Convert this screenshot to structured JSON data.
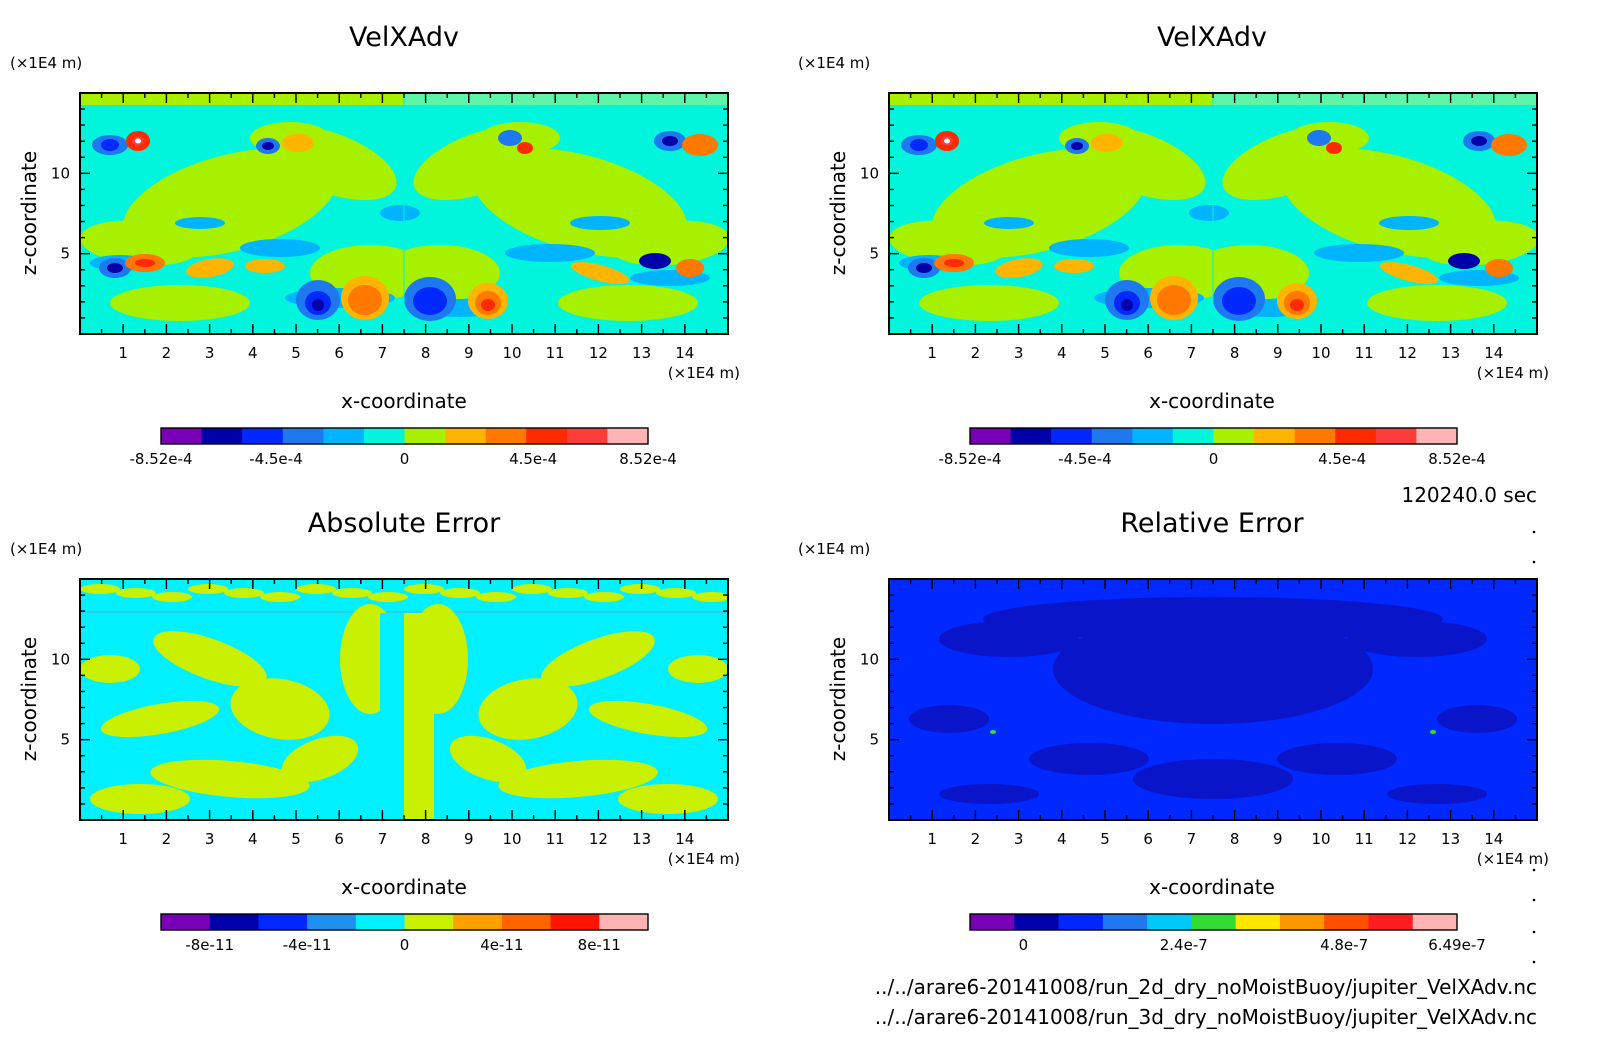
{
  "time_label": "120240.0 sec",
  "file_paths": [
    "../../arare6-20141008/run_2d_dry_noMoistBuoy/jupiter_VelXAdv.nc",
    "../../arare6-20141008/run_3d_dry_noMoistBuoy/jupiter_VelXAdv.nc"
  ],
  "chart_data": [
    {
      "type": "heatmap",
      "title": "VelXAdv",
      "xlabel": "x-coordinate",
      "ylabel": "z-coordinate",
      "x_unit": "(×1E4 m)",
      "y_unit": "(×1E4 m)",
      "x_ticks": [
        1,
        2,
        3,
        4,
        5,
        6,
        7,
        8,
        9,
        10,
        11,
        12,
        13,
        14
      ],
      "y_ticks": [
        5,
        10
      ],
      "xlim": [
        0,
        15
      ],
      "ylim": [
        0,
        15
      ],
      "colorbar": {
        "min": -0.000852,
        "max": 0.000852,
        "colors": [
          "#7a00b8",
          "#0000a8",
          "#0028ff",
          "#1e78f0",
          "#00b4ff",
          "#00f5dc",
          "#a6f000",
          "#ffb400",
          "#ff7800",
          "#ff2a00",
          "#ff3c3c",
          "#ffb4b4"
        ],
        "tick_labels": [
          "-8.52e-4",
          "-4.5e-4",
          "0",
          "4.5e-4",
          "8.52e-4"
        ],
        "tick_values": [
          -0.000852,
          -0.00045,
          0,
          0.00045,
          0.000852
        ]
      },
      "field": "velx"
    },
    {
      "type": "heatmap",
      "title": "VelXAdv",
      "xlabel": "x-coordinate",
      "ylabel": "z-coordinate",
      "x_unit": "(×1E4 m)",
      "y_unit": "(×1E4 m)",
      "x_ticks": [
        1,
        2,
        3,
        4,
        5,
        6,
        7,
        8,
        9,
        10,
        11,
        12,
        13,
        14
      ],
      "y_ticks": [
        5,
        10
      ],
      "xlim": [
        0,
        15
      ],
      "ylim": [
        0,
        15
      ],
      "colorbar": {
        "min": -0.000852,
        "max": 0.000852,
        "colors": [
          "#7a00b8",
          "#0000a8",
          "#0028ff",
          "#1e78f0",
          "#00b4ff",
          "#00f5dc",
          "#a6f000",
          "#ffb400",
          "#ff7800",
          "#ff2a00",
          "#ff3c3c",
          "#ffb4b4"
        ],
        "tick_labels": [
          "-8.52e-4",
          "-4.5e-4",
          "0",
          "4.5e-4",
          "8.52e-4"
        ],
        "tick_values": [
          -0.000852,
          -0.00045,
          0,
          0.00045,
          0.000852
        ]
      },
      "field": "velx"
    },
    {
      "type": "heatmap",
      "title": "Absolute Error",
      "xlabel": "x-coordinate",
      "ylabel": "z-coordinate",
      "x_unit": "(×1E4 m)",
      "y_unit": "(×1E4 m)",
      "x_ticks": [
        1,
        2,
        3,
        4,
        5,
        6,
        7,
        8,
        9,
        10,
        11,
        12,
        13,
        14
      ],
      "y_ticks": [
        5,
        10
      ],
      "xlim": [
        0,
        15
      ],
      "ylim": [
        0,
        15
      ],
      "colorbar": {
        "min": -1e-10,
        "max": 1e-10,
        "colors": [
          "#7a00b8",
          "#0000a8",
          "#0028ff",
          "#1e90f0",
          "#00f0ff",
          "#c8f000",
          "#ffa000",
          "#ff6400",
          "#ff1400",
          "#ffb4b4"
        ],
        "tick_labels": [
          "-8e-11",
          "-4e-11",
          "0",
          "4e-11",
          "8e-11"
        ],
        "tick_values": [
          -8e-11,
          -4e-11,
          0,
          4e-11,
          8e-11
        ]
      },
      "field": "abserr"
    },
    {
      "type": "heatmap",
      "title": "Relative Error",
      "xlabel": "x-coordinate",
      "ylabel": "z-coordinate",
      "x_unit": "(×1E4 m)",
      "y_unit": "(×1E4 m)",
      "x_ticks": [
        1,
        2,
        3,
        4,
        5,
        6,
        7,
        8,
        9,
        10,
        11,
        12,
        13,
        14
      ],
      "y_ticks": [
        5,
        10
      ],
      "xlim": [
        0,
        15
      ],
      "ylim": [
        0,
        15
      ],
      "colorbar": {
        "min": -8e-08,
        "max": 6.49e-07,
        "colors": [
          "#7a00b8",
          "#0000a8",
          "#0028ff",
          "#1e78f0",
          "#00c8ff",
          "#32dc32",
          "#ffe600",
          "#ff9600",
          "#ff5000",
          "#ff1e1e",
          "#ffb4b4"
        ],
        "tick_labels": [
          "0",
          "2.4e-7",
          "4.8e-7",
          "6.49e-7"
        ],
        "tick_values": [
          0,
          2.4e-07,
          4.8e-07,
          6.49e-07
        ]
      },
      "field": "relerr"
    }
  ]
}
